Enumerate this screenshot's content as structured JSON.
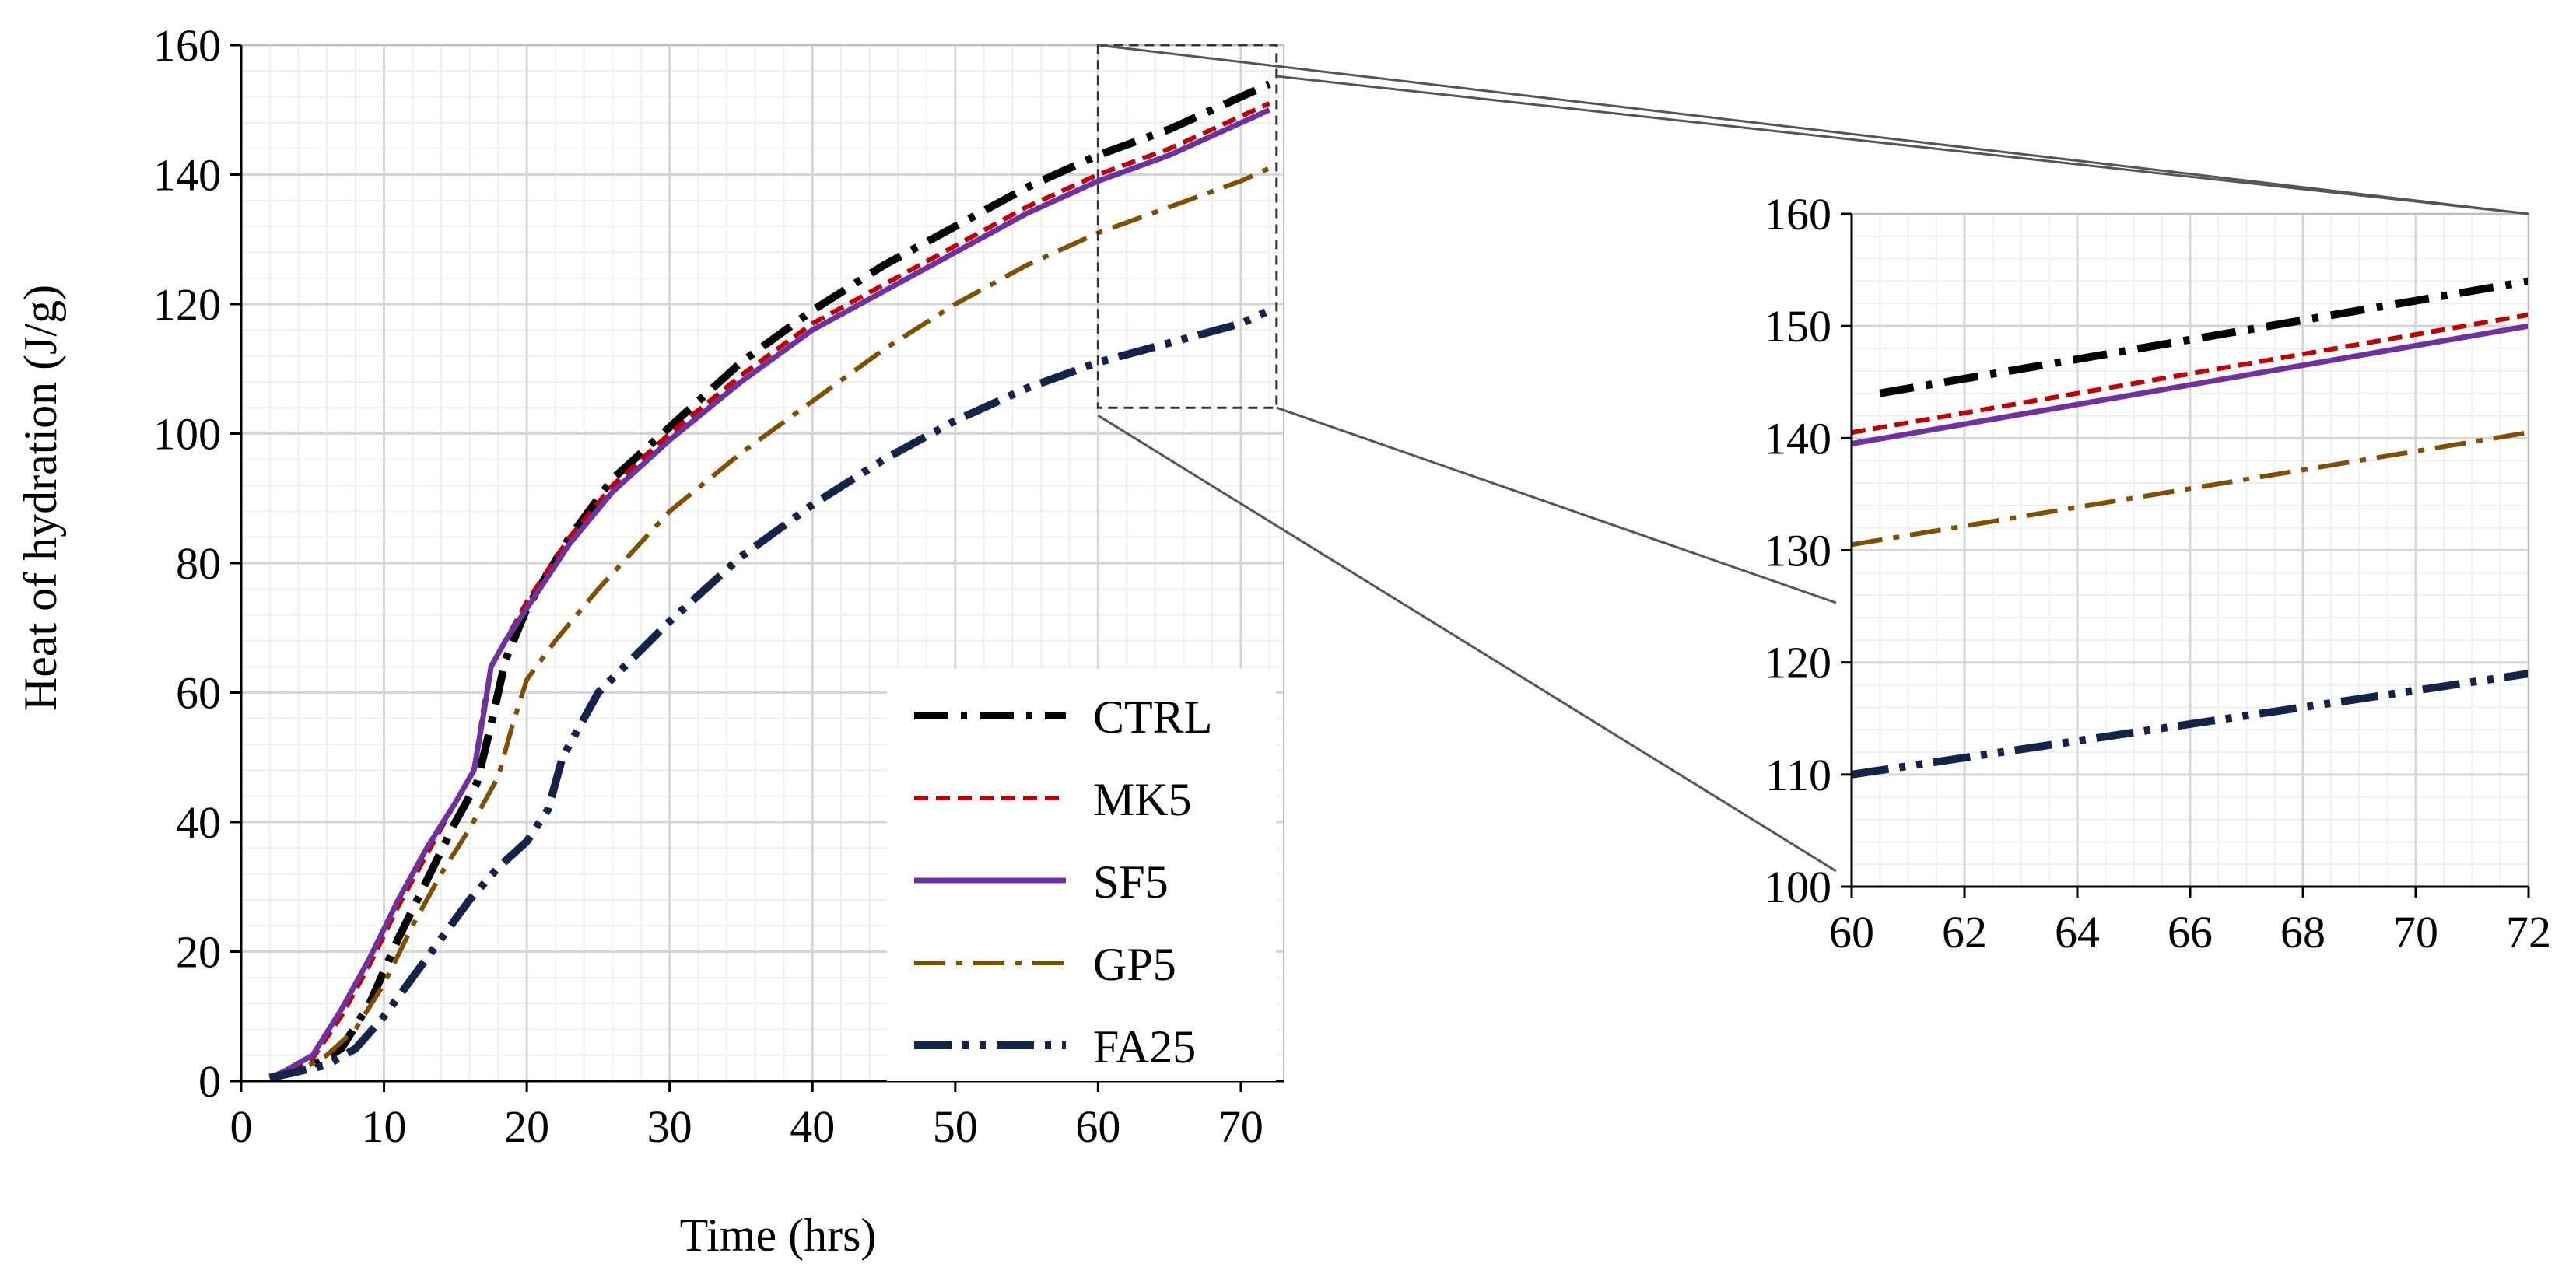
{
  "chart_data": [
    {
      "type": "line",
      "title": "",
      "xlabel": "Time (hrs)",
      "ylabel": "Heat of hydration (J/g)",
      "xlim": [
        0,
        73
      ],
      "ylim": [
        0,
        160
      ],
      "xticks": [
        0,
        10,
        20,
        30,
        40,
        50,
        60,
        70
      ],
      "yticks": [
        0,
        20,
        40,
        60,
        80,
        100,
        120,
        140,
        160
      ],
      "grid": true,
      "legend_position": "bottom-right",
      "series": [
        {
          "name": "CTRL",
          "color": "#000000",
          "dash": "dash-dot",
          "x": [
            2,
            4,
            5.5,
            7,
            9,
            11,
            13,
            15,
            16.5,
            17.5,
            18.5,
            20,
            23,
            26,
            30,
            35,
            40,
            45,
            50,
            55,
            60,
            65,
            70,
            72
          ],
          "y": [
            0.5,
            1.5,
            3,
            5,
            12,
            22,
            31,
            40,
            46,
            55,
            65,
            73,
            84,
            93,
            101,
            111,
            119,
            126,
            132,
            138,
            143,
            147,
            152,
            154
          ]
        },
        {
          "name": "MK5",
          "color": "#c00000",
          "dash": "dash",
          "x": [
            2,
            3,
            5,
            7,
            9,
            11,
            13,
            15,
            16.3,
            17,
            17.5,
            18.5,
            20,
            23,
            26,
            30,
            35,
            40,
            45,
            50,
            55,
            60,
            65,
            70,
            72
          ],
          "y": [
            0.5,
            1.5,
            3.5,
            10,
            18,
            27,
            35,
            43,
            48,
            58,
            64,
            68,
            74,
            84,
            92,
            100,
            109,
            117,
            123,
            129,
            135,
            140,
            144,
            149,
            151
          ]
        },
        {
          "name": "SF5",
          "color": "#7030a0",
          "dash": "solid",
          "x": [
            2,
            3,
            5,
            7,
            9,
            11,
            13,
            15,
            16.3,
            17,
            17.5,
            18.5,
            20,
            23,
            26,
            30,
            35,
            40,
            45,
            50,
            55,
            60,
            65,
            70,
            72
          ],
          "y": [
            0.5,
            1.5,
            4,
            11,
            19,
            28,
            36,
            43,
            48,
            57,
            64,
            68,
            73,
            83,
            91,
            99,
            108,
            116,
            122,
            128,
            134,
            139,
            143,
            148,
            150
          ]
        },
        {
          "name": "GP5",
          "color": "#7f4f00",
          "dash": "long-dash-dot",
          "x": [
            2,
            4,
            6,
            8,
            10,
            12,
            14,
            16,
            18,
            19,
            20,
            22,
            25,
            30,
            35,
            40,
            45,
            50,
            55,
            60,
            65,
            70,
            72
          ],
          "y": [
            0.5,
            1.5,
            4,
            8,
            15,
            24,
            32,
            39,
            47,
            55,
            62,
            68,
            76,
            88,
            97,
            105,
            113,
            120,
            126,
            131,
            135,
            139,
            141
          ]
        },
        {
          "name": "FA25",
          "color": "#14234a",
          "dash": "long-dash-dot-dot",
          "x": [
            2,
            4,
            6,
            8,
            10,
            12,
            14,
            16,
            18,
            20,
            21.5,
            22.5,
            25,
            30,
            35,
            40,
            45,
            50,
            55,
            60,
            65,
            70,
            72
          ],
          "y": [
            0.5,
            1.5,
            2.5,
            5,
            10,
            16,
            22,
            28,
            33,
            37,
            42,
            50,
            60,
            71,
            81,
            89,
            96,
            102,
            107,
            111,
            114,
            117,
            119
          ]
        }
      ]
    },
    {
      "type": "line",
      "title": "",
      "xlabel": "",
      "ylabel": "",
      "xlim": [
        60,
        72
      ],
      "ylim": [
        100,
        160
      ],
      "xticks": [
        60,
        62,
        64,
        66,
        68,
        70,
        72
      ],
      "yticks": [
        100,
        110,
        120,
        130,
        140,
        150,
        160
      ],
      "grid": true,
      "series": [
        {
          "name": "CTRL",
          "color": "#000000",
          "dash": "dash-dot",
          "x": [
            60.5,
            72
          ],
          "y": [
            144,
            154
          ]
        },
        {
          "name": "MK5",
          "color": "#c00000",
          "dash": "dash",
          "x": [
            60,
            72
          ],
          "y": [
            140.5,
            151
          ]
        },
        {
          "name": "SF5",
          "color": "#7030a0",
          "dash": "solid",
          "x": [
            60,
            72
          ],
          "y": [
            139.5,
            150
          ]
        },
        {
          "name": "GP5",
          "color": "#7f4f00",
          "dash": "long-dash-dot",
          "x": [
            60,
            72
          ],
          "y": [
            130.5,
            140.5
          ]
        },
        {
          "name": "FA25",
          "color": "#14234a",
          "dash": "long-dash-dot-dot",
          "x": [
            60,
            72
          ],
          "y": [
            110,
            119
          ]
        }
      ]
    }
  ]
}
